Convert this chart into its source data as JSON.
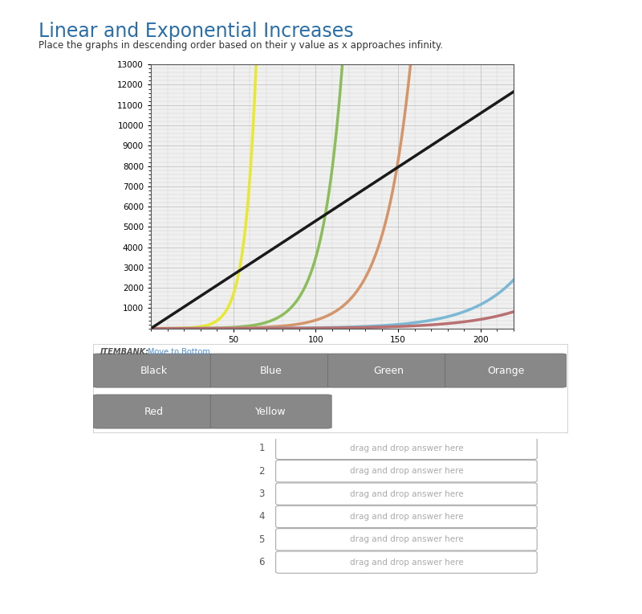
{
  "title": "Linear and Exponential Increases",
  "subtitle": "Place the graphs in descending order based on their y value as x approaches infinity.",
  "xlim": [
    0,
    220
  ],
  "ylim": [
    0,
    13000
  ],
  "yticks": [
    1000,
    2000,
    3000,
    4000,
    5000,
    6000,
    7000,
    8000,
    9000,
    10000,
    11000,
    12000,
    13000
  ],
  "xticks": [
    50,
    100,
    150,
    200
  ],
  "curves": [
    {
      "label": "Yellow",
      "color": "#e8e832",
      "type": "exponential",
      "b": 1.16
    },
    {
      "label": "Green",
      "color": "#8bbe5a",
      "type": "exponential",
      "b": 1.085
    },
    {
      "label": "Orange",
      "color": "#d4956a",
      "type": "exponential",
      "b": 1.062
    },
    {
      "label": "Blue",
      "color": "#7ab8d4",
      "type": "exponential",
      "b": 1.036
    },
    {
      "label": "Red",
      "color": "#b87070",
      "type": "exponential",
      "b": 1.031
    },
    {
      "label": "Black",
      "color": "#1a1a1a",
      "type": "linear",
      "slope": 53
    }
  ],
  "item_bank_labels_row1": [
    "Black",
    "Blue",
    "Green",
    "Orange"
  ],
  "item_bank_labels_row2": [
    "Red",
    "Yellow"
  ],
  "drop_labels": [
    "1",
    "2",
    "3",
    "4",
    "5",
    "6"
  ],
  "drop_text": "drag and drop answer here",
  "itembank_text": "ITEMBANK:",
  "itembank_link": "Move to Bottom",
  "bg_color": "#ffffff",
  "sidebar_color": "#4a7c9e",
  "plot_bg": "#f0f0f0",
  "grid_color": "#bbbbbb",
  "title_color": "#2a6ea8",
  "subtitle_color": "#333333",
  "linewidth": 2.5,
  "btn_color": "#888888",
  "btn_text_color": "#ffffff",
  "drop_box_color": "#aaaaaa",
  "drop_text_color": "#aaaaaa"
}
